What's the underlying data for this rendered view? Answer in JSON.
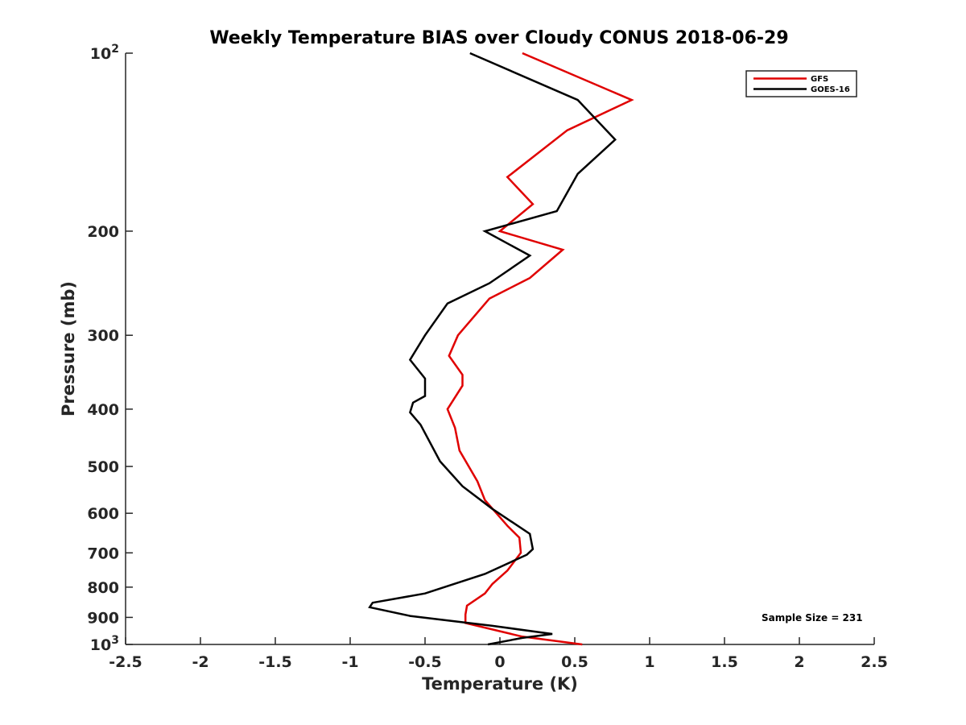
{
  "chart_data": {
    "type": "line",
    "title": "Weekly Temperature BIAS over Cloudy CONUS 2018-06-29",
    "xlabel": "Temperature (K)",
    "ylabel": "Pressure (mb)",
    "xlim": [
      -2.5,
      2.5
    ],
    "ylim": [
      100,
      1000
    ],
    "yscale": "log",
    "y_reversed": true,
    "grid": false,
    "legend_position": "top-right",
    "x_ticks": [
      "-2.5",
      "-2",
      "-1.5",
      "-1",
      "-0.5",
      "0",
      "0.5",
      "1",
      "1.5",
      "2",
      "2.5"
    ],
    "x_tick_values": [
      -2.5,
      -2,
      -1.5,
      -1,
      -0.5,
      0,
      0.5,
      1,
      1.5,
      2,
      2.5
    ],
    "y_ticks": [
      {
        "value": 100,
        "base": "10",
        "exp": "2"
      },
      {
        "value": 200,
        "label": "200"
      },
      {
        "value": 300,
        "label": "300"
      },
      {
        "value": 400,
        "label": "400"
      },
      {
        "value": 500,
        "label": "500"
      },
      {
        "value": 600,
        "label": "600"
      },
      {
        "value": 700,
        "label": "700"
      },
      {
        "value": 800,
        "label": "800"
      },
      {
        "value": 900,
        "label": "900"
      },
      {
        "value": 1000,
        "base": "10",
        "exp": "3"
      }
    ],
    "annotation": "Sample Size = 231",
    "series": [
      {
        "name": "GFS",
        "color": "#e00000",
        "points": [
          [
            0.15,
            100
          ],
          [
            0.88,
            120
          ],
          [
            0.45,
            135
          ],
          [
            0.05,
            162
          ],
          [
            0.22,
            180
          ],
          [
            0.0,
            200
          ],
          [
            0.42,
            215
          ],
          [
            0.2,
            240
          ],
          [
            -0.07,
            260
          ],
          [
            -0.28,
            300
          ],
          [
            -0.34,
            325
          ],
          [
            -0.25,
            350
          ],
          [
            -0.25,
            365
          ],
          [
            -0.35,
            400
          ],
          [
            -0.3,
            430
          ],
          [
            -0.27,
            470
          ],
          [
            -0.15,
            530
          ],
          [
            -0.1,
            570
          ],
          [
            0.05,
            630
          ],
          [
            0.13,
            660
          ],
          [
            0.14,
            700
          ],
          [
            0.05,
            750
          ],
          [
            -0.05,
            790
          ],
          [
            -0.1,
            820
          ],
          [
            -0.22,
            860
          ],
          [
            -0.23,
            890
          ],
          [
            -0.23,
            920
          ],
          [
            0.15,
            970
          ],
          [
            0.55,
            1000
          ]
        ]
      },
      {
        "name": "GOES-16",
        "color": "#000000",
        "points": [
          [
            -0.2,
            100
          ],
          [
            0.52,
            120
          ],
          [
            0.77,
            140
          ],
          [
            0.52,
            160
          ],
          [
            0.38,
            185
          ],
          [
            -0.1,
            200
          ],
          [
            0.2,
            220
          ],
          [
            -0.07,
            245
          ],
          [
            -0.35,
            265
          ],
          [
            -0.5,
            300
          ],
          [
            -0.6,
            330
          ],
          [
            -0.5,
            355
          ],
          [
            -0.5,
            380
          ],
          [
            -0.58,
            390
          ],
          [
            -0.6,
            405
          ],
          [
            -0.53,
            425
          ],
          [
            -0.4,
            490
          ],
          [
            -0.25,
            540
          ],
          [
            -0.05,
            590
          ],
          [
            0.2,
            650
          ],
          [
            0.22,
            690
          ],
          [
            0.18,
            705
          ],
          [
            -0.1,
            760
          ],
          [
            -0.5,
            820
          ],
          [
            -0.85,
            850
          ],
          [
            -0.87,
            865
          ],
          [
            -0.6,
            895
          ],
          [
            -0.05,
            930
          ],
          [
            0.35,
            960
          ],
          [
            0.15,
            975
          ],
          [
            -0.08,
            1000
          ]
        ]
      }
    ]
  }
}
